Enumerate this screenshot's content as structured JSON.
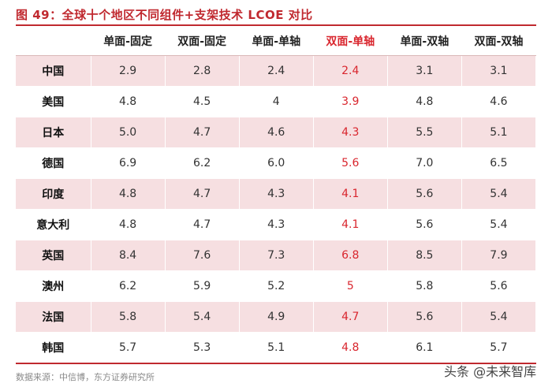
{
  "title": "图 49：全球十个地区不同组件+支架技术 LCOE 对比",
  "table": {
    "headers": [
      "",
      "单面-固定",
      "双面-固定",
      "单面-单轴",
      "双面-单轴",
      "单面-双轴",
      "双面-双轴"
    ],
    "highlight_column": "双面-单轴",
    "highlight_color": "#d9262e",
    "rows": [
      {
        "country": "中国",
        "values": [
          "2.9",
          "2.8",
          "2.4",
          "2.4",
          "3.1",
          "3.1"
        ]
      },
      {
        "country": "美国",
        "values": [
          "4.8",
          "4.5",
          "4",
          "3.9",
          "4.8",
          "4.6"
        ]
      },
      {
        "country": "日本",
        "values": [
          "5.0",
          "4.7",
          "4.6",
          "4.3",
          "5.5",
          "5.1"
        ]
      },
      {
        "country": "德国",
        "values": [
          "6.9",
          "6.2",
          "6.0",
          "5.6",
          "7.0",
          "6.5"
        ]
      },
      {
        "country": "印度",
        "values": [
          "4.8",
          "4.7",
          "4.3",
          "4.1",
          "5.6",
          "5.4"
        ]
      },
      {
        "country": "意大利",
        "values": [
          "4.8",
          "4.7",
          "4.3",
          "4.1",
          "5.6",
          "5.4"
        ]
      },
      {
        "country": "英国",
        "values": [
          "8.4",
          "7.6",
          "7.3",
          "6.8",
          "8.5",
          "7.9"
        ]
      },
      {
        "country": "澳州",
        "values": [
          "6.2",
          "5.9",
          "5.2",
          "5",
          "5.8",
          "5.6"
        ]
      },
      {
        "country": "法国",
        "values": [
          "5.8",
          "5.4",
          "4.9",
          "4.7",
          "5.6",
          "5.4"
        ]
      },
      {
        "country": "韩国",
        "values": [
          "5.7",
          "5.3",
          "5.1",
          "4.8",
          "6.1",
          "5.7"
        ]
      }
    ]
  },
  "source": "数据来源：中信博，东方证券研究所",
  "watermark": "头条 @未来智库",
  "colors": {
    "accent": "#c0292f",
    "row_band": "#f6dfe1"
  }
}
